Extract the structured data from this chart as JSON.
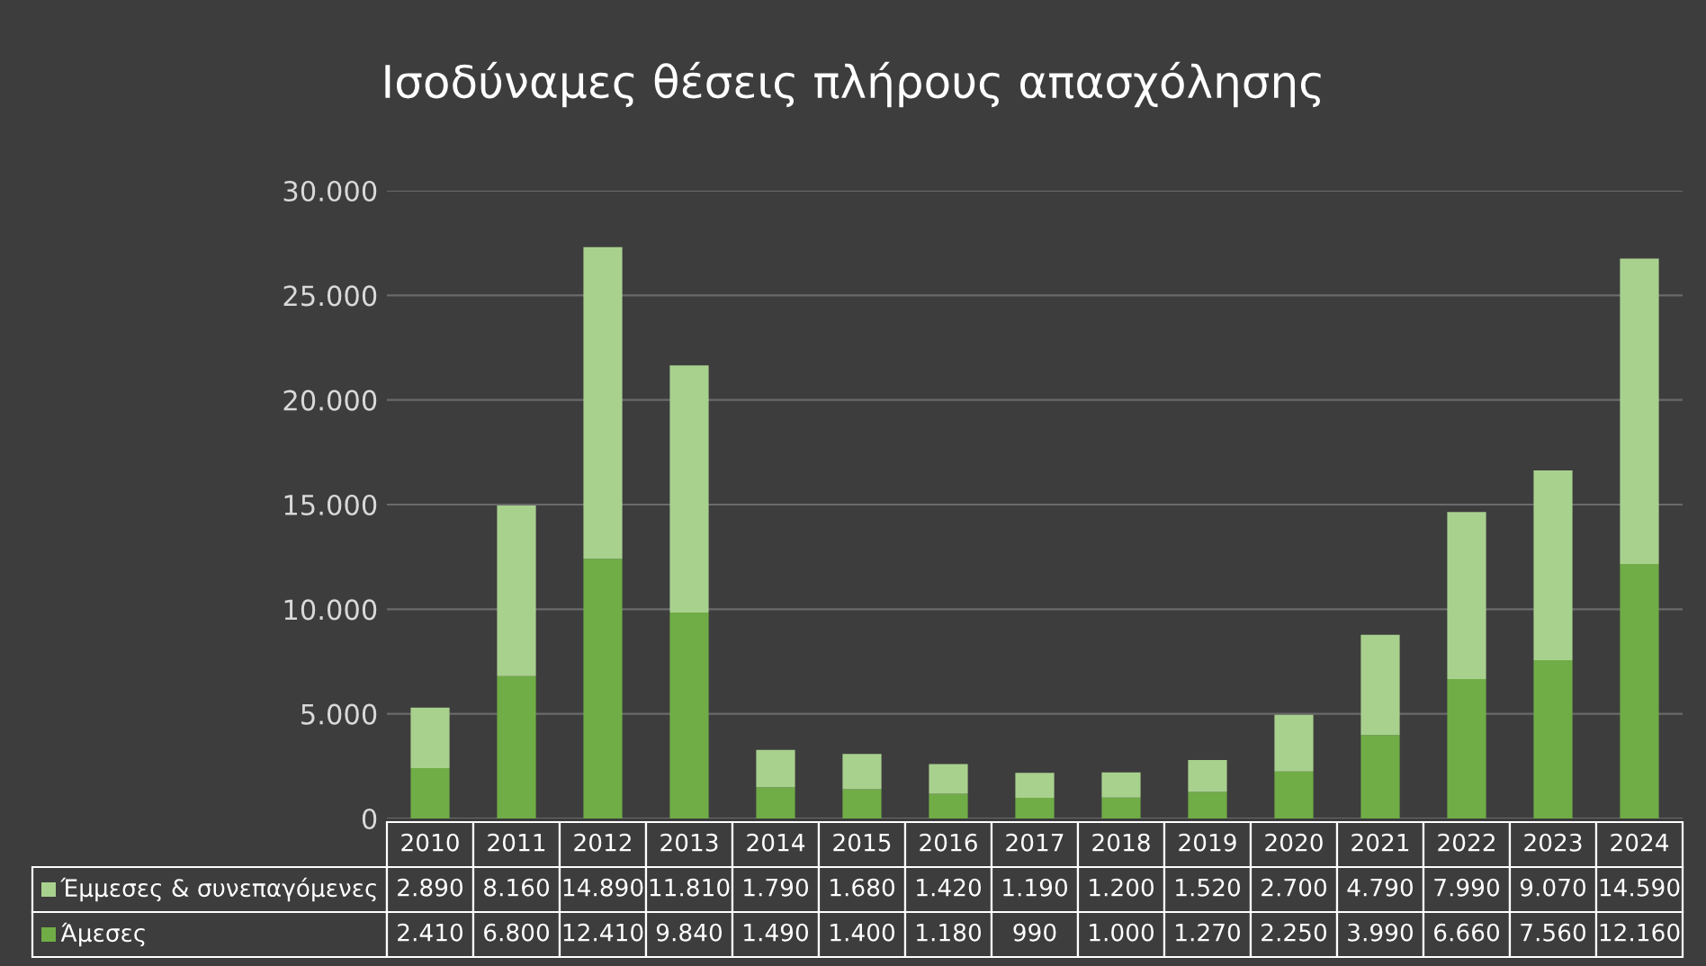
{
  "chart_data": {
    "type": "bar",
    "title": "Ισοδύναμες θέσεις πλήρους απασχόλησης",
    "stacked": true,
    "grid": "y",
    "legend": "bottom",
    "categories": [
      "2010",
      "2011",
      "2012",
      "2013",
      "2014",
      "2015",
      "2016",
      "2017",
      "2018",
      "2019",
      "2020",
      "2021",
      "2022",
      "2023",
      "2024"
    ],
    "ylim": [
      0,
      30000
    ],
    "yticks": [
      {
        "value": 0,
        "label": "0"
      },
      {
        "value": 5000,
        "label": "5.000"
      },
      {
        "value": 10000,
        "label": "10.000"
      },
      {
        "value": 15000,
        "label": "15.000"
      },
      {
        "value": 20000,
        "label": "20.000"
      },
      {
        "value": 25000,
        "label": "25.000"
      },
      {
        "value": 30000,
        "label": "30.000"
      }
    ],
    "series": [
      {
        "name": "Άμεσες",
        "color": "#70ad47",
        "values": [
          2410,
          6800,
          12410,
          9840,
          1490,
          1400,
          1180,
          990,
          1000,
          1270,
          2250,
          3990,
          6660,
          7560,
          12160
        ],
        "value_labels": [
          "2.410",
          "6.800",
          "12.410",
          "9.840",
          "1.490",
          "1.400",
          "1.180",
          "990",
          "1.000",
          "1.270",
          "2.250",
          "3.990",
          "6.660",
          "7.560",
          "12.160"
        ]
      },
      {
        "name": "Έμμεσες & συνεπαγόμενες",
        "color": "#a9d18e",
        "values": [
          2890,
          8160,
          14890,
          11810,
          1790,
          1680,
          1420,
          1190,
          1200,
          1520,
          2700,
          4790,
          7990,
          9070,
          14590
        ],
        "value_labels": [
          "2.890",
          "8.160",
          "14.890",
          "11.810",
          "1.790",
          "1.680",
          "1.420",
          "1.190",
          "1.200",
          "1.520",
          "2.700",
          "4.790",
          "7.990",
          "9.070",
          "14.590"
        ]
      }
    ]
  }
}
